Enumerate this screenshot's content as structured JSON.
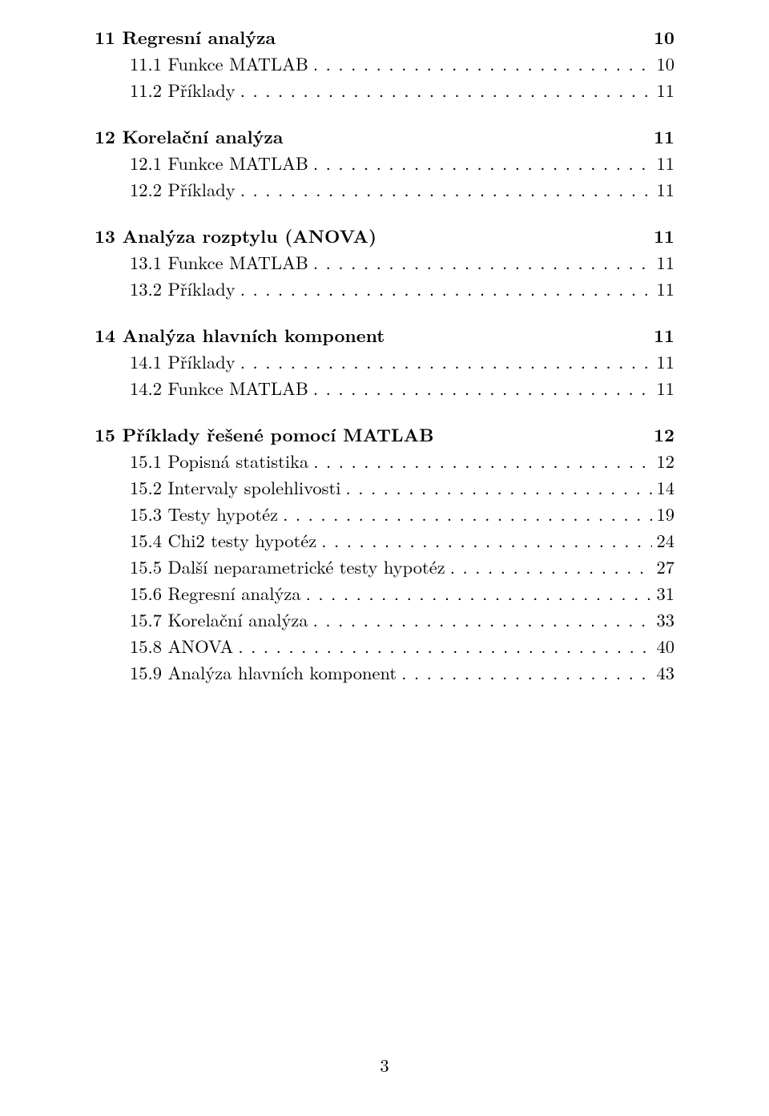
{
  "page_number": "3",
  "sections": [
    {
      "id": "s11",
      "number": "11",
      "title": "Regresní analýza",
      "page": "10",
      "subs": [
        {
          "id": "s11-1",
          "number": "11.1",
          "title": "Funkce MATLAB",
          "page": "10"
        },
        {
          "id": "s11-2",
          "number": "11.2",
          "title": "Příklady",
          "page": "11"
        }
      ]
    },
    {
      "id": "s12",
      "number": "12",
      "title": "Korelační analýza",
      "page": "11",
      "subs": [
        {
          "id": "s12-1",
          "number": "12.1",
          "title": "Funkce MATLAB",
          "page": "11"
        },
        {
          "id": "s12-2",
          "number": "12.2",
          "title": "Příklady",
          "page": "11"
        }
      ]
    },
    {
      "id": "s13",
      "number": "13",
      "title": "Analýza rozptylu (ANOVA)",
      "page": "11",
      "subs": [
        {
          "id": "s13-1",
          "number": "13.1",
          "title": "Funkce MATLAB",
          "page": "11"
        },
        {
          "id": "s13-2",
          "number": "13.2",
          "title": "Příklady",
          "page": "11"
        }
      ]
    },
    {
      "id": "s14",
      "number": "14",
      "title": "Analýza hlavních komponent",
      "page": "11",
      "subs": [
        {
          "id": "s14-1",
          "number": "14.1",
          "title": "Příklady",
          "page": "11"
        },
        {
          "id": "s14-2",
          "number": "14.2",
          "title": "Funkce MATLAB",
          "page": "11"
        }
      ]
    },
    {
      "id": "s15",
      "number": "15",
      "title": "Příklady řešené pomocí MATLAB",
      "page": "12",
      "subs": [
        {
          "id": "s15-1",
          "number": "15.1",
          "title": "Popisná statistika",
          "page": "12"
        },
        {
          "id": "s15-2",
          "number": "15.2",
          "title": "Intervaly spolehlivosti",
          "page": "14"
        },
        {
          "id": "s15-3",
          "number": "15.3",
          "title": "Testy hypotéz",
          "page": "19"
        },
        {
          "id": "s15-4",
          "number": "15.4",
          "title": "Chi2 testy hypotéz",
          "page": "24"
        },
        {
          "id": "s15-5",
          "number": "15.5",
          "title": "Další neparametrické testy hypotéz",
          "page": "27"
        },
        {
          "id": "s15-6",
          "number": "15.6",
          "title": "Regresní analýza",
          "page": "31"
        },
        {
          "id": "s15-7",
          "number": "15.7",
          "title": "Korelační analýza",
          "page": "33"
        },
        {
          "id": "s15-8",
          "number": "15.8",
          "title": "ANOVA",
          "page": "40"
        },
        {
          "id": "s15-9",
          "number": "15.9",
          "title": "Analýza hlavních komponent",
          "page": "43"
        }
      ]
    }
  ]
}
